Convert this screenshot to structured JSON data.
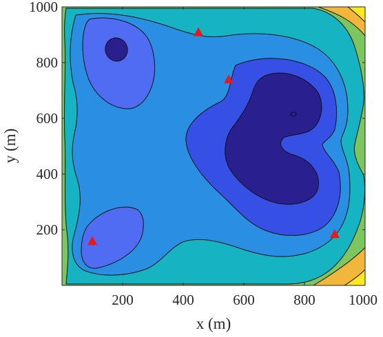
{
  "chart_data": {
    "type": "contour",
    "xlabel": "x (m)",
    "ylabel": "y (m)",
    "xlim": [
      0,
      1000
    ],
    "ylim": [
      0,
      1000
    ],
    "x_ticks": [
      200,
      400,
      600,
      800,
      1000
    ],
    "y_ticks": [
      200,
      400,
      600,
      800,
      1000
    ],
    "grid": false,
    "legend": "none",
    "markers": {
      "shape": "triangle",
      "color": "#e8181b",
      "points": [
        {
          "x": 100,
          "y": 160
        },
        {
          "x": 450,
          "y": 910
        },
        {
          "x": 550,
          "y": 740
        },
        {
          "x": 900,
          "y": 185
        }
      ]
    },
    "colormap": [
      "#2a1f8f",
      "#3650e6",
      "#4f6cf2",
      "#2a8fe3",
      "#16b3c2",
      "#7cc55f",
      "#f2b63a",
      "#fde723"
    ]
  }
}
